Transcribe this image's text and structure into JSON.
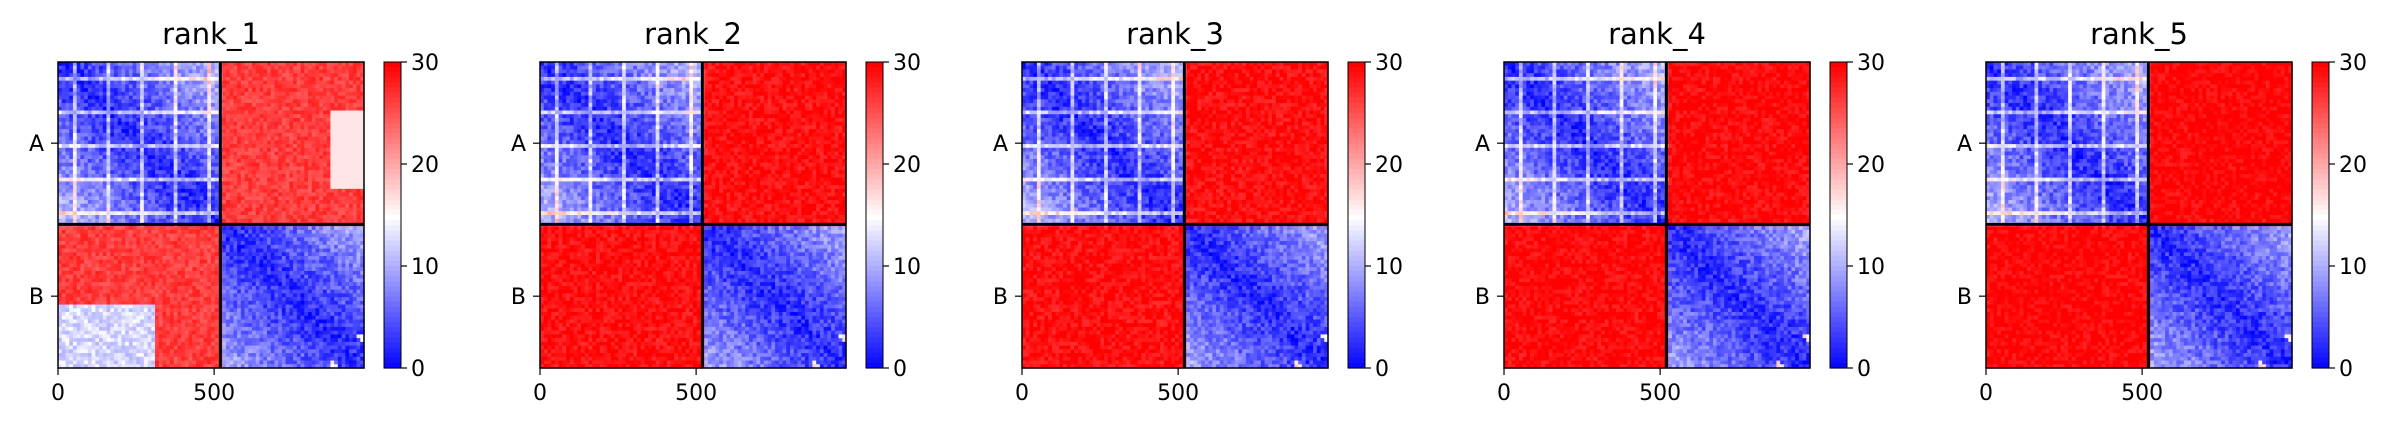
{
  "chart_data": [
    {
      "type": "heatmap",
      "title": "rank_1",
      "xlabel": "",
      "ylabel": "",
      "x_ticks": [
        0,
        500
      ],
      "y_chain_labels": [
        "A",
        "B"
      ],
      "chain_boundary": 520,
      "matrix_size": 980,
      "colorbar_ticks": [
        0,
        10,
        20,
        30
      ],
      "vmin": 0,
      "vmax": 30,
      "colormap": [
        "#0000ff",
        "#ffffff",
        "#ff0000"
      ],
      "off_diagonal_level": 0.88
    },
    {
      "type": "heatmap",
      "title": "rank_2",
      "xlabel": "",
      "ylabel": "",
      "x_ticks": [
        0,
        500
      ],
      "y_chain_labels": [
        "A",
        "B"
      ],
      "chain_boundary": 520,
      "matrix_size": 980,
      "colorbar_ticks": [
        0,
        10,
        20,
        30
      ],
      "vmin": 0,
      "vmax": 30,
      "colormap": [
        "#0000ff",
        "#ffffff",
        "#ff0000"
      ],
      "off_diagonal_level": 0.97
    },
    {
      "type": "heatmap",
      "title": "rank_3",
      "xlabel": "",
      "ylabel": "",
      "x_ticks": [
        0,
        500
      ],
      "y_chain_labels": [
        "A",
        "B"
      ],
      "chain_boundary": 520,
      "matrix_size": 980,
      "colorbar_ticks": [
        0,
        10,
        20,
        30
      ],
      "vmin": 0,
      "vmax": 30,
      "colormap": [
        "#0000ff",
        "#ffffff",
        "#ff0000"
      ],
      "off_diagonal_level": 0.97
    },
    {
      "type": "heatmap",
      "title": "rank_4",
      "xlabel": "",
      "ylabel": "",
      "x_ticks": [
        0,
        500
      ],
      "y_chain_labels": [
        "A",
        "B"
      ],
      "chain_boundary": 520,
      "matrix_size": 980,
      "colorbar_ticks": [
        0,
        10,
        20,
        30
      ],
      "vmin": 0,
      "vmax": 30,
      "colormap": [
        "#0000ff",
        "#ffffff",
        "#ff0000"
      ],
      "off_diagonal_level": 0.98
    },
    {
      "type": "heatmap",
      "title": "rank_5",
      "xlabel": "",
      "ylabel": "",
      "x_ticks": [
        0,
        500
      ],
      "y_chain_labels": [
        "A",
        "B"
      ],
      "chain_boundary": 520,
      "matrix_size": 980,
      "colorbar_ticks": [
        0,
        10,
        20,
        30
      ],
      "vmin": 0,
      "vmax": 30,
      "colormap": [
        "#0000ff",
        "#ffffff",
        "#ff0000"
      ],
      "off_diagonal_level": 0.99
    }
  ]
}
